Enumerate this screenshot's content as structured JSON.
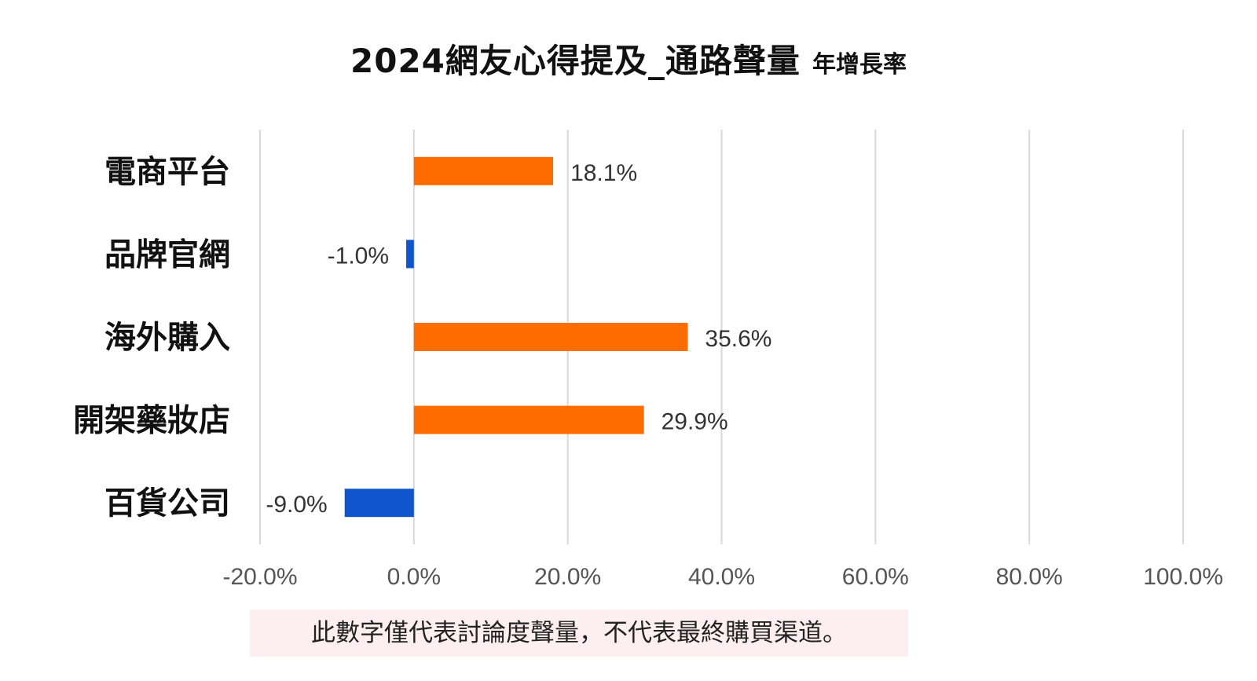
{
  "chart_data": {
    "type": "bar",
    "orientation": "horizontal",
    "title": "2024網友心得提及_通路聲量",
    "subtitle": "年增長率",
    "categories": [
      "電商平台",
      "品牌官網",
      "海外購入",
      "開架藥妝店",
      "百貨公司"
    ],
    "values": [
      18.1,
      -1.0,
      35.6,
      29.9,
      -9.0
    ],
    "value_labels": [
      "18.1%",
      "-1.0%",
      "35.6%",
      "29.9%",
      "-9.0%"
    ],
    "xlim": [
      -20,
      100
    ],
    "xticks": [
      -20,
      0,
      20,
      40,
      60,
      80,
      100
    ],
    "xtick_labels": [
      "-20.0%",
      "0.0%",
      "20.0%",
      "40.0%",
      "60.0%",
      "80.0%",
      "100.0%"
    ],
    "xlabel": "",
    "ylabel": "",
    "grid": "vertical",
    "legend": "none",
    "colors": {
      "positive": "#ff6c00",
      "negative": "#1155cc",
      "grid": "#d9d9d9"
    }
  },
  "note": "此數字僅代表討論度聲量，不代表最終購買渠道。"
}
